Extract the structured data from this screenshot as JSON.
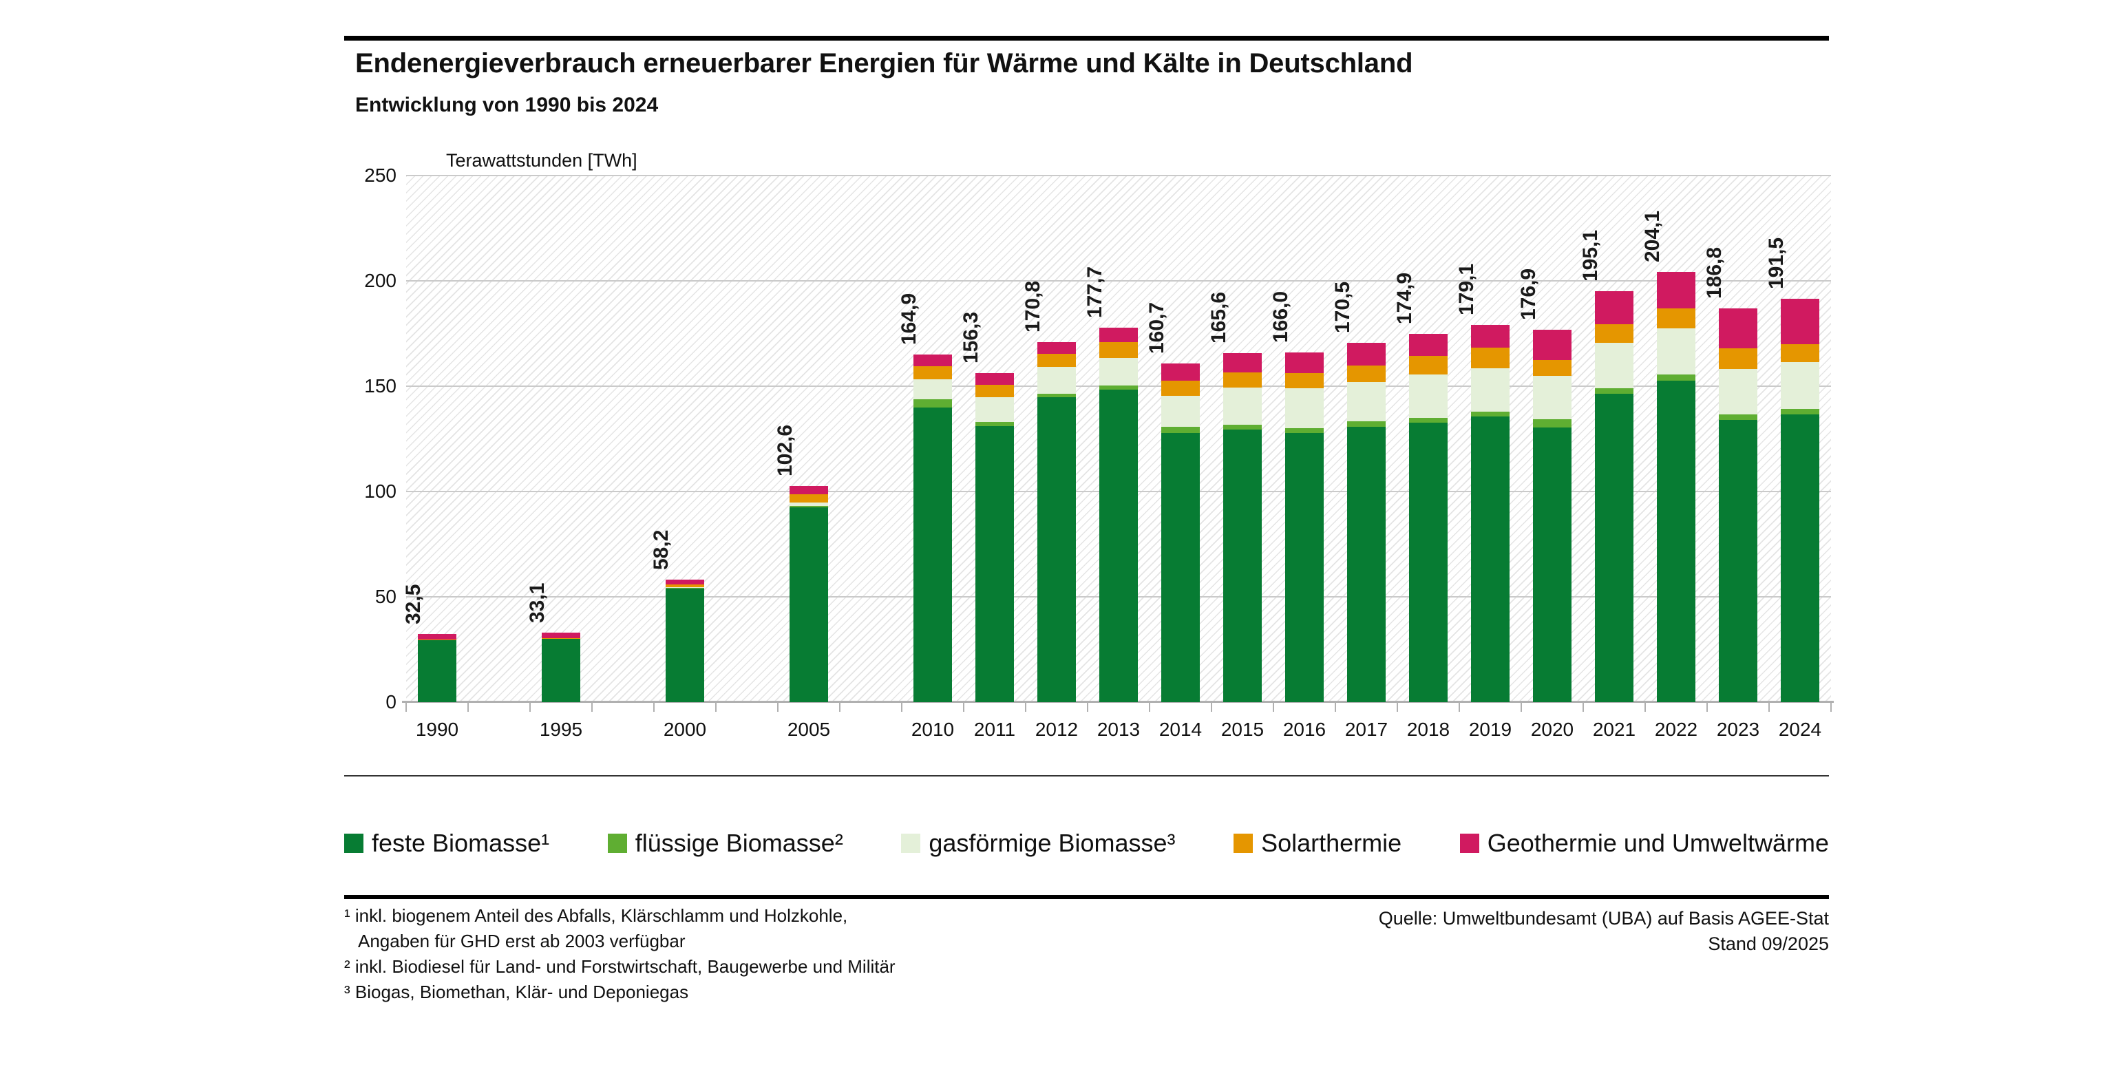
{
  "header": {
    "title": "Endenergieverbrauch erneuerbarer Energien für Wärme und Kälte in Deutschland",
    "subtitle": "Entwicklung von 1990 bis 2024"
  },
  "chart_data": {
    "type": "bar",
    "stacked": true,
    "axis_title": "Terawattstunden [TWh]",
    "categories": [
      "1990",
      "1995",
      "2000",
      "2005",
      "2010",
      "2011",
      "2012",
      "2013",
      "2014",
      "2015",
      "2016",
      "2017",
      "2018",
      "2019",
      "2020",
      "2021",
      "2022",
      "2023",
      "2024"
    ],
    "series": [
      {
        "name": "feste Biomasse¹",
        "color": "#077c33",
        "values": [
          29.8,
          30.3,
          54.1,
          92.5,
          139.9,
          131.0,
          144.7,
          148.4,
          127.7,
          129.5,
          127.9,
          130.7,
          132.8,
          135.6,
          130.4,
          146.5,
          152.7,
          133.9,
          136.7
        ]
      },
      {
        "name": "flüssige Biomasse²",
        "color": "#5fae32",
        "values": [
          0,
          0,
          0.1,
          0.7,
          3.8,
          2.0,
          1.8,
          1.9,
          2.9,
          2.2,
          2.2,
          2.6,
          2.3,
          2.2,
          3.8,
          2.4,
          2.7,
          2.8,
          2.4
        ]
      },
      {
        "name": "gasförmige Biomasse³",
        "color": "#e4f0d9",
        "values": [
          0,
          0,
          0.3,
          1.6,
          9.6,
          11.8,
          12.5,
          13.1,
          14.8,
          17.8,
          18.8,
          18.5,
          20.3,
          20.8,
          20.6,
          21.7,
          22.1,
          21.6,
          22.2
        ]
      },
      {
        "name": "Solarthermie",
        "color": "#e59600",
        "values": [
          0.1,
          0.2,
          1.3,
          3.9,
          6.2,
          5.9,
          6.4,
          7.4,
          7.3,
          7.0,
          7.4,
          7.9,
          9.1,
          9.8,
          7.6,
          8.7,
          9.4,
          9.6,
          8.7
        ]
      },
      {
        "name": "Geothermie und Umweltwärme",
        "color": "#d01a60",
        "values": [
          2.6,
          2.6,
          2.4,
          3.9,
          5.4,
          5.6,
          5.4,
          6.9,
          8.0,
          9.1,
          9.7,
          10.8,
          10.4,
          10.7,
          14.5,
          15.8,
          17.2,
          18.9,
          21.5
        ]
      }
    ],
    "totals_labels": [
      "32,5",
      "33,1",
      "58,2",
      "102,6",
      "164,9",
      "156,3",
      "170,8",
      "177,7",
      "160,7",
      "165,6",
      "166,0",
      "170,5",
      "174,9",
      "179,1",
      "176,9",
      "195,1",
      "204,1",
      "186,8",
      "191,5"
    ],
    "y_ticks": [
      "0",
      "50",
      "100",
      "150",
      "200",
      "250"
    ],
    "ylim": [
      0,
      250
    ],
    "grid": "horizontal",
    "legend_position": "bottom",
    "layout": {
      "slot_of_category": [
        0,
        2,
        4,
        6,
        8,
        9,
        10,
        11,
        12,
        13,
        14,
        15,
        16,
        17,
        18,
        19,
        20,
        21,
        22
      ],
      "total_slots": 23
    }
  },
  "footnotes": {
    "lines": [
      {
        "marker": "¹",
        "text": "inkl. biogenem Anteil des Abfalls, Klärschlamm und Holzkohle,",
        "indent": false
      },
      {
        "marker": "",
        "text": "Angaben für GHD erst ab 2003 verfügbar",
        "indent": true
      },
      {
        "marker": "²",
        "text": "inkl. Biodiesel für Land- und Forstwirtschaft, Baugewerbe und Militär",
        "indent": false
      },
      {
        "marker": "³",
        "text": "Biogas, Biomethan, Klär- und Deponiegas",
        "indent": false
      }
    ]
  },
  "source": {
    "line1": "Quelle: Umweltbundesamt (UBA) auf Basis AGEE-Stat",
    "line2": "Stand 09/2025"
  },
  "colors": {
    "grid": "#cacaca",
    "axis": "#b0b0b0",
    "hatch": "#e4e4e4",
    "rule": "#000000",
    "text": "#111111"
  }
}
